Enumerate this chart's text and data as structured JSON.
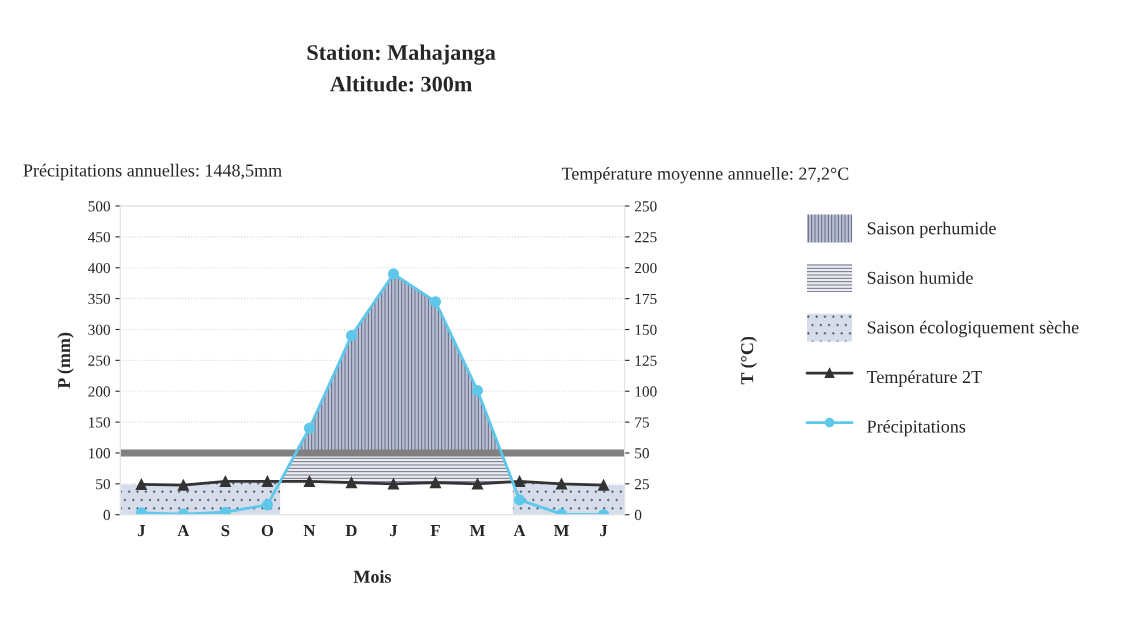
{
  "chart_data": {
    "type": "line",
    "title": "Station: Mahajanga",
    "subtitle": "Altitude: 300m",
    "xlabel": "Mois",
    "ylabel": "P (mm)",
    "y2label": "T (°C)",
    "annotations": [
      "Précipitations annuelles: 1448,5mm",
      "Température moyenne annuelle: 27,2°C",
      "Saison perhumide",
      "Saison humide",
      "Saison écologiquement sèche"
    ],
    "categories": [
      "J",
      "A",
      "S",
      "O",
      "N",
      "D",
      "J",
      "F",
      "M",
      "A",
      "M",
      "J"
    ],
    "series": [
      {
        "name": "Température 2T",
        "color": "#333333",
        "marker": "triangle",
        "values": [
          49,
          48,
          54,
          54,
          54,
          52,
          50,
          52,
          50,
          54,
          50,
          48
        ]
      },
      {
        "name": "Précipitations",
        "color": "#5ec8ea",
        "marker": "circle",
        "values": [
          3,
          1,
          4,
          16,
          140,
          290,
          390,
          345,
          201,
          24,
          1,
          0
        ]
      }
    ],
    "ylim": [
      0,
      500
    ],
    "yticks": [
      0,
      50,
      100,
      150,
      200,
      250,
      300,
      350,
      400,
      450,
      500
    ],
    "y2lim": [
      0,
      250
    ],
    "y2ticks": [
      0,
      25,
      50,
      75,
      100,
      125,
      150,
      175,
      200,
      225,
      250
    ],
    "ref_lines": [
      {
        "axis": "y",
        "value": 100,
        "color": "#808080"
      }
    ],
    "grid": "y",
    "legend": "right"
  }
}
